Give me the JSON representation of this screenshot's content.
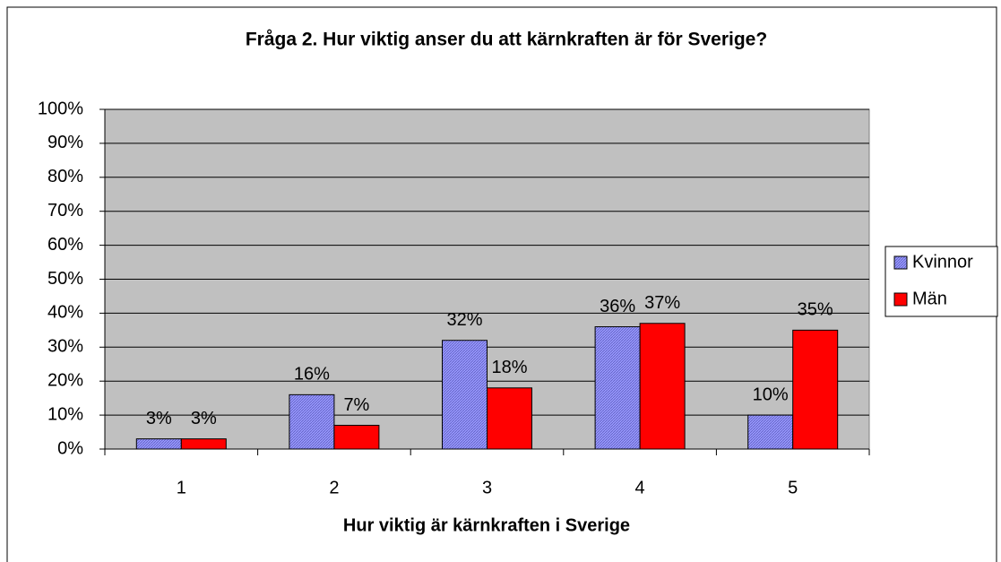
{
  "chart_data": {
    "type": "bar",
    "title": "Fråga 2. Hur viktig anser du att kärnkraften är för Sverige?",
    "x_label": "Hur viktig är kärnkraften i Sverige",
    "categories": [
      "1",
      "2",
      "3",
      "4",
      "5"
    ],
    "series": [
      {
        "name": "Kvinnor",
        "color": "#9999ff",
        "values": [
          3,
          16,
          32,
          36,
          10
        ],
        "value_labels": [
          "3%",
          "16%",
          "32%",
          "36%",
          "10%"
        ]
      },
      {
        "name": "Män",
        "color": "#ff0000",
        "values": [
          3,
          7,
          18,
          37,
          35
        ],
        "value_labels": [
          "3%",
          "7%",
          "18%",
          "37%",
          "35%"
        ]
      }
    ],
    "ylim": [
      0,
      100
    ],
    "yticks": [
      {
        "value": 0,
        "label": "0%"
      },
      {
        "value": 10,
        "label": "10%"
      },
      {
        "value": 20,
        "label": "20%"
      },
      {
        "value": 30,
        "label": "30%"
      },
      {
        "value": 40,
        "label": "40%"
      },
      {
        "value": 50,
        "label": "50%"
      },
      {
        "value": 60,
        "label": "60%"
      },
      {
        "value": 70,
        "label": "70%"
      },
      {
        "value": 80,
        "label": "80%"
      },
      {
        "value": 90,
        "label": "90%"
      },
      {
        "value": 100,
        "label": "100%"
      }
    ],
    "grid": true,
    "legend": "right"
  }
}
